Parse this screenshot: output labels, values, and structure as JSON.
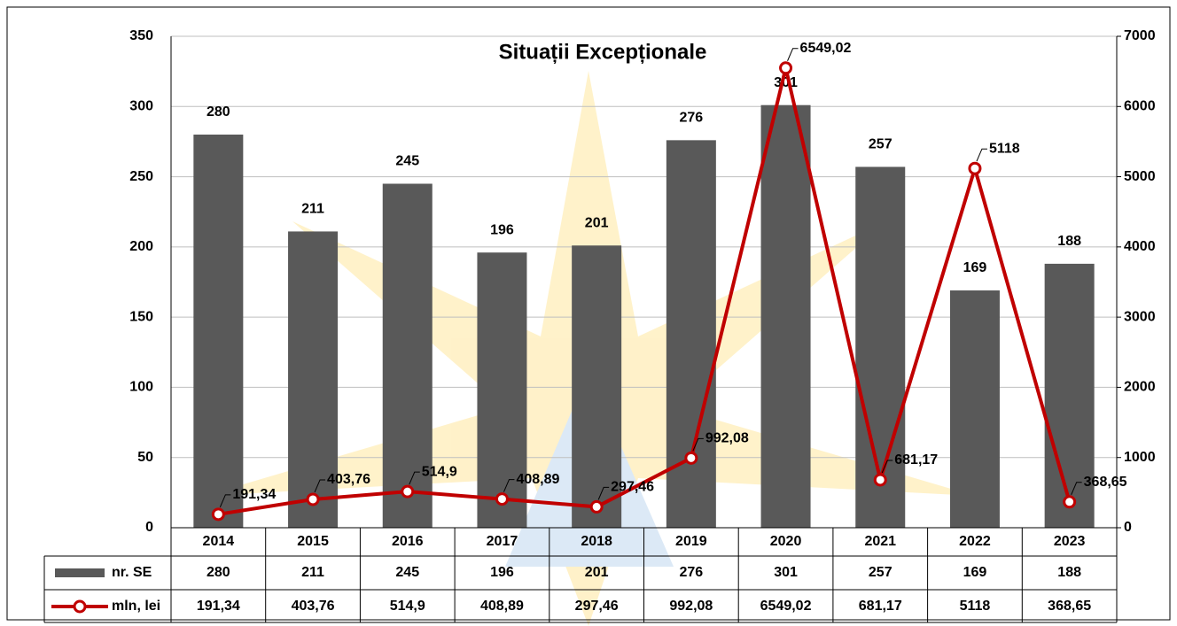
{
  "chart_data": {
    "type": "bar",
    "title": "Situații Excepționale",
    "categories": [
      "2014",
      "2015",
      "2016",
      "2017",
      "2018",
      "2019",
      "2020",
      "2021",
      "2022",
      "2023"
    ],
    "series": [
      {
        "name": "nr. SE",
        "color": "#595959",
        "values": [
          280,
          211,
          245,
          196,
          201,
          276,
          301,
          257,
          169,
          188
        ]
      },
      {
        "name": "mln, lei",
        "type": "line",
        "axis": "y2",
        "color": "#c00000",
        "values": [
          191.34,
          403.76,
          514.9,
          408.89,
          297.46,
          992.08,
          6549.02,
          681.17,
          5118,
          368.65
        ],
        "value_labels": [
          "191,34",
          "403,76",
          "514,9",
          "408,89",
          "297,46",
          "992,08",
          "6549,02",
          "681,17",
          "5118",
          "368,65"
        ]
      }
    ],
    "ylim": [
      0,
      350
    ],
    "yticks": [
      0,
      50,
      100,
      150,
      200,
      250,
      300,
      350
    ],
    "y2lim": [
      0,
      7000
    ],
    "y2ticks": [
      0,
      1000,
      2000,
      3000,
      4000,
      5000,
      6000,
      7000
    ],
    "grid": true,
    "data_table": true
  }
}
